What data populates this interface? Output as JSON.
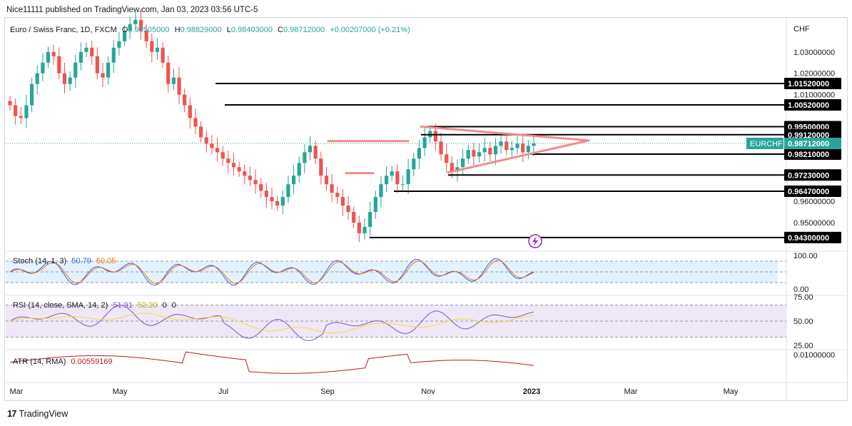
{
  "header": {
    "published_by": "Nice11111 published on TradingView.com, Jan 03, 2023 03:56 UTC-5"
  },
  "main_legend": {
    "symbol": "Euro / Swiss Franc, 1D, FXCM",
    "o_label": "O",
    "o_value": "0.98505000",
    "h_label": "H",
    "h_value": "0.98829000",
    "l_label": "L",
    "l_value": "0.98403000",
    "c_label": "C",
    "c_value": "0.98712000",
    "change": "+0.00207000 (+0.21%)"
  },
  "stoch_legend": {
    "name": "Stoch (14, 1, 3)",
    "k": "50.79",
    "d": "50.05"
  },
  "rsi_legend": {
    "name": "RSI (14, close, SMA, 14, 2)",
    "rsi": "51.91",
    "sma": "52.20",
    "v1": "0",
    "v2": "0"
  },
  "atr_legend": {
    "name": "ATR (14, RMA)",
    "value": "0.00559169"
  },
  "footer": {
    "brand": "TradingView"
  },
  "colors": {
    "up": "#26a69a",
    "down": "#ef5350",
    "level": "#000000",
    "pattern": "#f28b8b",
    "stoch_k": "#2962ff",
    "stoch_d": "#ff6d00",
    "stoch_band": "#e3f2fd",
    "rsi_line": "#7e57c2",
    "rsi_sma": "#fdd835",
    "rsi_band": "#ede7f6",
    "atr": "#b71c1c",
    "last_price": "#26a69a"
  },
  "chart_data": {
    "type": "candlestick",
    "symbol": "EURCHF",
    "timeframe": "1D",
    "price_axis": {
      "unit": "CHF",
      "ticks": [
        "1.03000000",
        "1.02000000",
        "1.01000000",
        "0.96000000",
        "0.95000000"
      ]
    },
    "x_axis": {
      "ticks": [
        "Mar",
        "May",
        "Jul",
        "Sep",
        "Nov",
        "2023",
        "Mar",
        "May"
      ]
    },
    "last_price": {
      "label": "EURCHF",
      "value": 0.98712,
      "text": "0.98712000"
    },
    "horizontal_levels": [
      {
        "value": 1.0152,
        "text": "1.01520000",
        "from": "Jun 27"
      },
      {
        "value": 1.0052,
        "text": "1.00520000",
        "from": "Jul 02"
      },
      {
        "value": 0.995,
        "text": "0.99500000",
        "from": "Oct 26"
      },
      {
        "value": 0.9912,
        "text": "0.99120000",
        "from": "Oct 26"
      },
      {
        "value": 0.9821,
        "text": "0.98210000",
        "from": "Dec 28"
      },
      {
        "value": 0.9723,
        "text": "0.97230000",
        "from": "Nov 09"
      },
      {
        "value": 0.9647,
        "text": "0.96470000",
        "from": "Oct 08"
      },
      {
        "value": 0.943,
        "text": "0.94300000",
        "from": "Sep 23"
      }
    ],
    "pattern_lines": [
      {
        "name": "resistance",
        "from": {
          "date": "Aug 31",
          "price": 0.9882
        },
        "to": {
          "date": "Oct 24",
          "price": 0.9882
        }
      },
      {
        "name": "retest",
        "from": {
          "date": "Sep 06",
          "price": 0.9732
        },
        "to": {
          "date": "Sep 20",
          "price": 0.9732
        }
      },
      {
        "name": "triangle-upper",
        "from": {
          "date": "Oct 26",
          "price": 0.995
        },
        "to": {
          "date": "Feb 10",
          "price": 0.9885
        }
      },
      {
        "name": "triangle-lower",
        "from": {
          "date": "Nov 09",
          "price": 0.9735
        },
        "to": {
          "date": "Feb 10",
          "price": 0.9885
        }
      }
    ],
    "close_series": [
      1.005,
      1.0,
      0.999,
      1.005,
      1.015,
      1.02,
      1.025,
      1.03,
      1.028,
      1.02,
      1.015,
      1.018,
      1.025,
      1.03,
      1.032,
      1.028,
      1.02,
      1.018,
      1.025,
      1.032,
      1.035,
      1.04,
      1.043,
      1.045,
      1.04,
      1.035,
      1.03,
      1.032,
      1.025,
      1.015,
      1.018,
      1.01,
      1.005,
      0.999,
      0.995,
      0.99,
      0.987,
      0.985,
      0.983,
      0.98,
      0.978,
      0.976,
      0.974,
      0.972,
      0.97,
      0.968,
      0.965,
      0.962,
      0.96,
      0.958,
      0.962,
      0.968,
      0.972,
      0.978,
      0.983,
      0.986,
      0.98,
      0.972,
      0.968,
      0.964,
      0.962,
      0.958,
      0.955,
      0.95,
      0.945,
      0.948,
      0.955,
      0.962,
      0.968,
      0.972,
      0.974,
      0.968,
      0.968,
      0.975,
      0.98,
      0.985,
      0.99,
      0.993,
      0.988,
      0.982,
      0.978,
      0.974,
      0.976,
      0.98,
      0.984,
      0.981,
      0.983,
      0.985,
      0.982,
      0.986,
      0.988,
      0.984,
      0.985,
      0.987,
      0.983,
      0.986,
      0.9871
    ]
  }
}
